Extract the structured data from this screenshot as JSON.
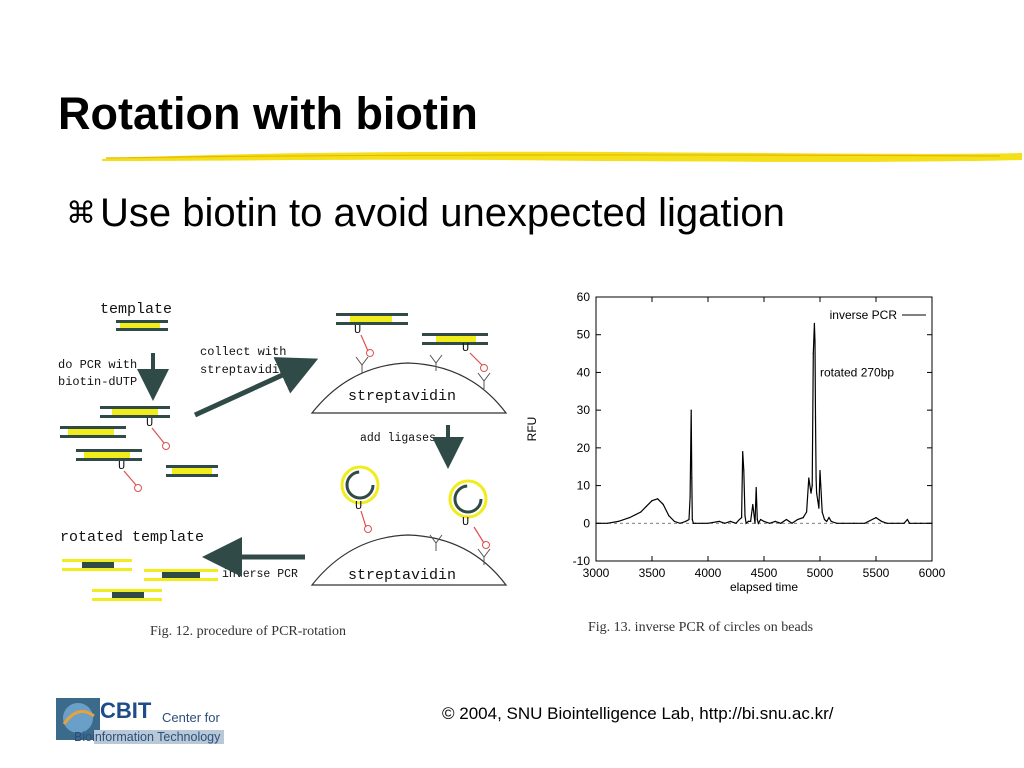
{
  "slide": {
    "title": "Rotation with biotin",
    "bullet_glyph": "⌘",
    "bullet_text": "Use biotin to avoid unexpected ligation",
    "footer": "© 2004, SNU Biointelligence Lab, http://bi.snu.ac.kr/"
  },
  "logo": {
    "mark": "CBIT",
    "line1": "Center for",
    "line2": "Bioinformation Technology"
  },
  "diagram": {
    "template_label": "template",
    "pcr_step_line1": "do PCR with",
    "pcr_step_line2": "biotin-dUTP",
    "collect_line1": "collect with",
    "collect_line2": "streptavidin",
    "bead_label": "streptavidin",
    "uracil": "U",
    "ligase_label": "add ligases",
    "inverse_label": "inverse PCR",
    "rotated_label": "rotated template",
    "caption": "Fig. 12.   procedure of PCR-rotation"
  },
  "chart_data": {
    "type": "line",
    "xlabel": "elapsed time",
    "ylabel": "RFU",
    "xlim": [
      3000,
      6000
    ],
    "ylim": [
      -10,
      60
    ],
    "xticks": [
      3000,
      3500,
      4000,
      4500,
      5000,
      5500,
      6000
    ],
    "yticks": [
      -10,
      0,
      10,
      20,
      30,
      40,
      50,
      60
    ],
    "legend_position": "top-right",
    "series": [
      {
        "name": "inverse PCR",
        "x": [
          3000,
          3100,
          3200,
          3300,
          3400,
          3450,
          3500,
          3550,
          3600,
          3650,
          3700,
          3750,
          3800,
          3830,
          3840,
          3850,
          3855,
          3860,
          3870,
          3890,
          3950,
          4000,
          4100,
          4150,
          4200,
          4250,
          4280,
          4300,
          4310,
          4320,
          4330,
          4340,
          4360,
          4380,
          4400,
          4420,
          4430,
          4440,
          4450,
          4470,
          4500,
          4550,
          4600,
          4650,
          4700,
          4750,
          4800,
          4850,
          4880,
          4900,
          4920,
          4930,
          4940,
          4950,
          4955,
          4960,
          4965,
          4970,
          4980,
          4990,
          5000,
          5020,
          5040,
          5060,
          5080,
          5100,
          5150,
          5200,
          5300,
          5400,
          5500,
          5550,
          5600,
          5650,
          5700,
          5750,
          5780,
          5800,
          5850,
          5900,
          6000
        ],
        "y": [
          0,
          0,
          0.5,
          1.5,
          3,
          4.5,
          6,
          6.5,
          5,
          2,
          0.5,
          0,
          0.5,
          1,
          7,
          30,
          12,
          1,
          0,
          0,
          0,
          0,
          0.5,
          0,
          0.5,
          0,
          1,
          1.5,
          19,
          14,
          2,
          0,
          0.5,
          0.5,
          5,
          0,
          9.5,
          1,
          0,
          1,
          0.5,
          0,
          0.5,
          0,
          1,
          0,
          1,
          1.5,
          3,
          12,
          8,
          10,
          45,
          53,
          48,
          28,
          12,
          8,
          6,
          4,
          14,
          3,
          1,
          0.5,
          1.5,
          0.5,
          0,
          0,
          0,
          0,
          1.5,
          0.5,
          0,
          0,
          0,
          0,
          1,
          0,
          0,
          0,
          0
        ]
      }
    ],
    "annotations": [
      {
        "text": "rotated 270bp",
        "x": 5000,
        "y": 40
      }
    ],
    "baseline_dashed_y": 0,
    "caption": "Fig. 13.   inverse PCR of circles on beads"
  }
}
